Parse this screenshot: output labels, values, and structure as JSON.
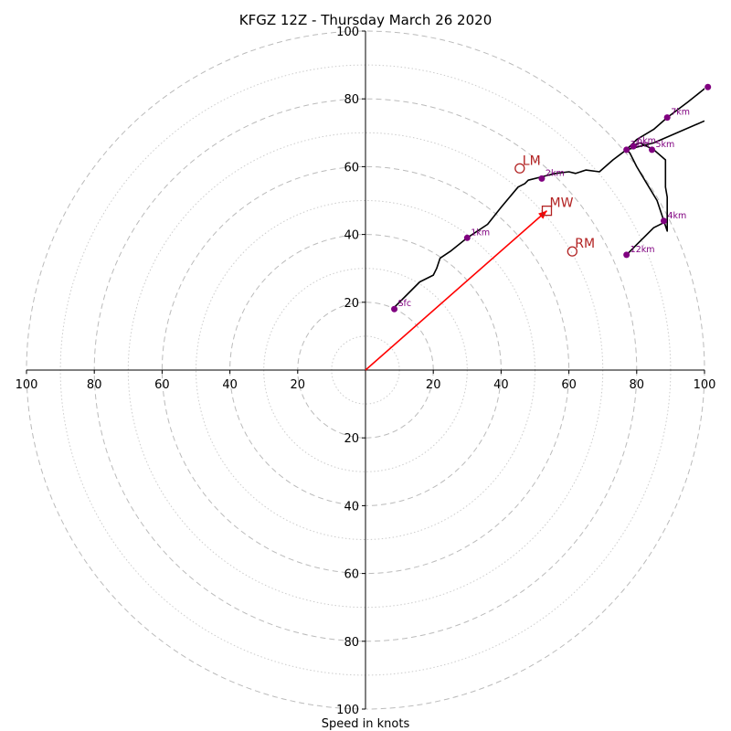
{
  "chart_data": {
    "type": "hodograph",
    "title": "KFGZ 12Z - Thursday March 26 2020",
    "xlabel": "Speed in knots",
    "range": [
      -100,
      100
    ],
    "ring_major": [
      20,
      40,
      60,
      80,
      100
    ],
    "ring_minor": [
      10,
      30,
      50,
      70,
      90
    ],
    "x_tick_labels": [
      "100",
      "80",
      "60",
      "40",
      "20",
      "20",
      "40",
      "60",
      "80",
      "100"
    ],
    "y_tick_labels_upper": [
      "20",
      "40",
      "60",
      "80",
      "100"
    ],
    "y_tick_labels_lower": [
      "20",
      "40",
      "60",
      "80",
      "100"
    ],
    "colors": {
      "trace": "#000000",
      "points": "#800080",
      "motion": "#b22222",
      "mean_wind_vector": "#ff0000",
      "rings": "#bbbbbb"
    },
    "hodograph": [
      [
        8,
        18
      ],
      [
        10,
        20
      ],
      [
        14,
        24
      ],
      [
        16,
        26
      ],
      [
        20,
        28
      ],
      [
        21,
        30
      ],
      [
        22,
        33
      ],
      [
        25,
        35
      ],
      [
        30,
        39
      ],
      [
        36,
        43
      ],
      [
        40,
        48
      ],
      [
        45,
        54
      ],
      [
        47,
        55
      ],
      [
        48,
        56
      ],
      [
        52,
        57
      ],
      [
        56,
        58
      ],
      [
        60,
        58.5
      ],
      [
        62,
        58
      ],
      [
        65,
        59
      ],
      [
        69,
        58.5
      ],
      [
        73,
        62
      ],
      [
        77,
        65
      ],
      [
        78,
        66
      ],
      [
        81,
        67
      ],
      [
        85,
        65
      ],
      [
        88.5,
        62
      ],
      [
        88.5,
        54
      ],
      [
        89,
        51
      ],
      [
        89,
        41
      ],
      [
        86,
        50
      ],
      [
        83,
        55
      ],
      [
        80,
        60
      ],
      [
        78,
        64
      ],
      [
        77,
        65
      ],
      [
        85,
        67
      ],
      [
        100,
        73.5
      ]
    ],
    "hodograph_upper": [
      [
        77,
        65
      ],
      [
        80,
        68
      ],
      [
        85,
        71
      ],
      [
        89,
        74.5
      ],
      [
        95,
        79
      ],
      [
        100,
        83
      ],
      [
        101,
        84
      ]
    ],
    "hodograph_tail": [
      [
        77,
        34
      ],
      [
        80,
        37
      ],
      [
        85,
        42
      ],
      [
        89,
        44
      ]
    ],
    "heights": [
      {
        "label": "Sfc",
        "u": 8.5,
        "v": 18.0
      },
      {
        "label": "1km",
        "u": 30.0,
        "v": 39.0
      },
      {
        "label": "2km",
        "u": 52.0,
        "v": 56.5
      },
      {
        "label": "3km",
        "u": 77.0,
        "v": 65.0
      },
      {
        "label": "4km",
        "u": 88.0,
        "v": 44.0
      },
      {
        "label": "5km",
        "u": 84.5,
        "v": 65.0
      },
      {
        "label": "6km",
        "u": 79.0,
        "v": 66.0
      },
      {
        "label": "7km",
        "u": 89.0,
        "v": 74.5
      },
      {
        "label": "12km",
        "u": 77.0,
        "v": 34.0
      },
      {
        "label": "",
        "u": 101.0,
        "v": 83.5
      }
    ],
    "storm_motion": [
      {
        "label": "LM",
        "u": 45.5,
        "v": 59.5,
        "marker": "circle"
      },
      {
        "label": "MW",
        "u": 53.5,
        "v": 47.0,
        "marker": "square"
      },
      {
        "label": "RM",
        "u": 61.0,
        "v": 35.0,
        "marker": "circle"
      }
    ],
    "mean_wind_vector": {
      "u": 53.5,
      "v": 47.0
    }
  }
}
